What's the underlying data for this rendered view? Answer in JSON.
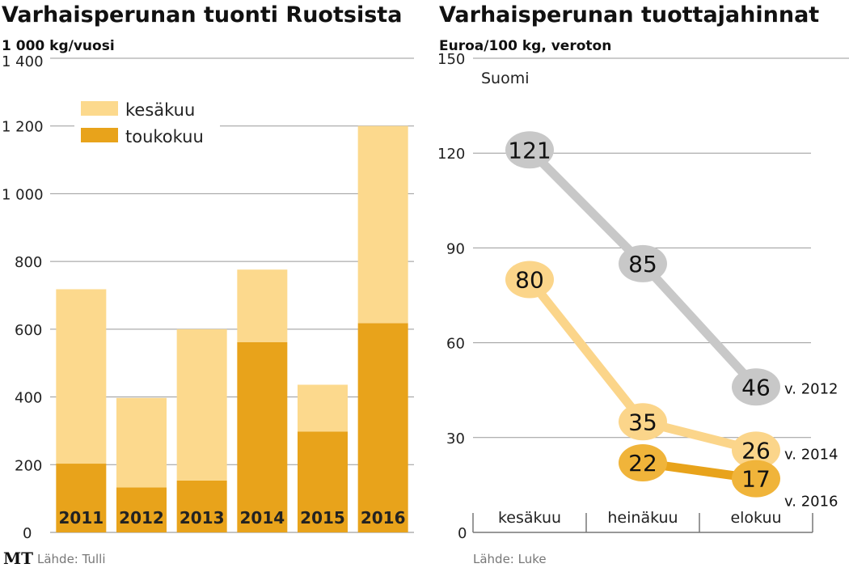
{
  "chart_data": [
    {
      "type": "bar",
      "stacked": true,
      "title": "Varhaisperunan tuonti Ruotsista",
      "ylabel": "1 000 kg/vuosi",
      "categories": [
        "2011",
        "2012",
        "2013",
        "2014",
        "2015",
        "2016"
      ],
      "series": [
        {
          "name": "toukokuu",
          "values": [
            203,
            133,
            153,
            562,
            298,
            618
          ],
          "color": "#e8a31b"
        },
        {
          "name": "kesäkuu",
          "values": [
            515,
            264,
            447,
            214,
            138,
            582
          ],
          "color": "#fcd98d"
        }
      ],
      "ylim": [
        0,
        1400
      ],
      "yticks": [
        0,
        200,
        400,
        600,
        800,
        1000,
        1200,
        1400
      ],
      "ytick_labels": [
        "0",
        "200",
        "400",
        "600",
        "800",
        "1 000",
        "1 200",
        "1 400"
      ],
      "legend": [
        "kesäkuu",
        "toukokuu"
      ],
      "legend_placement": "top-left",
      "source": "Lähde: Tulli",
      "logo": "MT"
    },
    {
      "type": "line",
      "title": "Varhaisperunan tuottajahinnat",
      "ylabel": "Euroa/100 kg, veroton",
      "annotation": "Suomi",
      "categories": [
        "kesäkuu",
        "heinäkuu",
        "elokuu"
      ],
      "series": [
        {
          "name": "v. 2012",
          "values": [
            121,
            85,
            46
          ],
          "color": "#c8c8c8"
        },
        {
          "name": "v. 2014",
          "values": [
            80,
            35,
            26
          ],
          "color": "#fbd58a"
        },
        {
          "name": "v. 2016",
          "values": [
            null,
            22,
            17
          ],
          "color": "#f0b43a"
        }
      ],
      "ylim": [
        0,
        150
      ],
      "yticks": [
        0,
        30,
        60,
        90,
        120,
        150
      ],
      "source": "Lähde: Luke"
    }
  ]
}
